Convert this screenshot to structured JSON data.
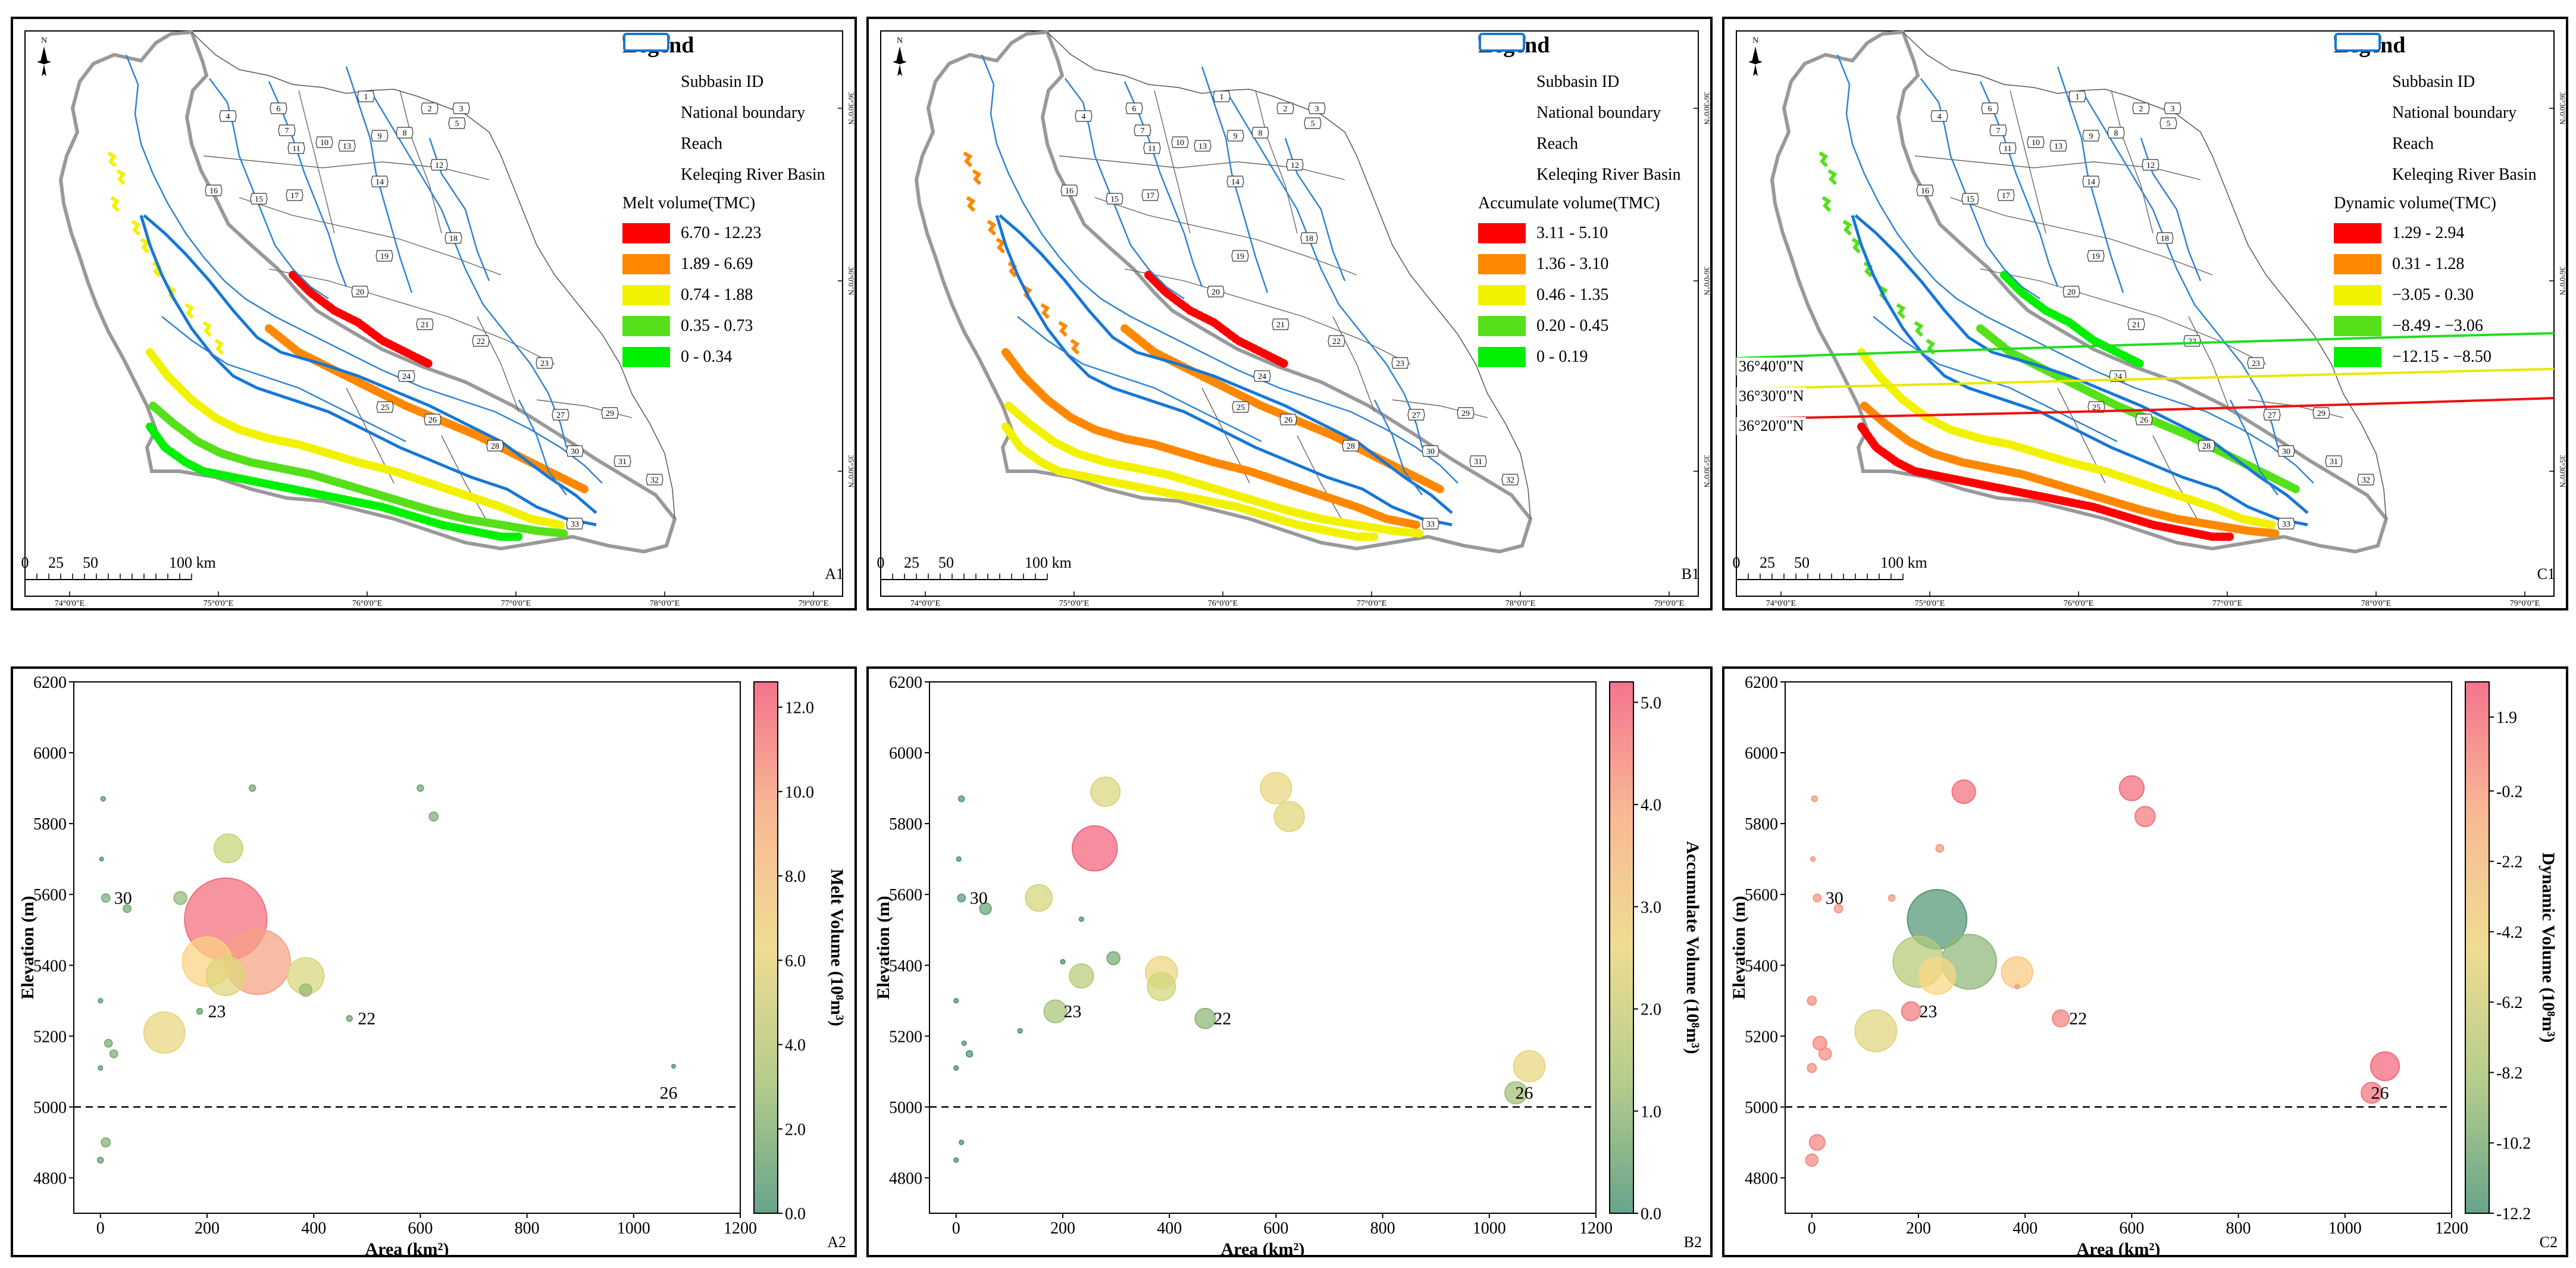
{
  "common": {
    "legend_title": "Legend",
    "items": {
      "subbasin": "Subbasin ID",
      "boundary": "National boundary",
      "reach": "Reach",
      "basin": "Keleqing River Basin"
    },
    "scale": [
      "0",
      "25",
      "50",
      "100 km"
    ],
    "lon_ticks": [
      "74°0'0\"E",
      "75°0'0\"E",
      "76°0'0\"E",
      "77°0'0\"E",
      "78°0'0\"E",
      "79°0'0\"E"
    ],
    "lat_ticks": [
      "36°30'0\"N",
      "36°0'0\"N",
      "35°30'0\"N"
    ],
    "north": "N",
    "subbasin_ids": [
      "1",
      "2",
      "3",
      "4",
      "5",
      "6",
      "7",
      "8",
      "9",
      "10",
      "11",
      "12",
      "13",
      "14",
      "15",
      "16",
      "17",
      "18",
      "19",
      "20",
      "21",
      "22",
      "23",
      "24",
      "25",
      "26",
      "27",
      "28",
      "29",
      "30",
      "31",
      "32",
      "33"
    ],
    "colors": {
      "c1": "#ff0000",
      "c2": "#ff8800",
      "c3": "#f2f200",
      "c4": "#55e01a",
      "c5": "#00f000"
    }
  },
  "maps": [
    {
      "id": "A1",
      "label": "A1",
      "legend_subtitle": "Melt volume(TMC)",
      "classes": [
        "6.70 - 12.23",
        "1.89 - 6.69",
        "0.74 - 1.88",
        "0.35 - 0.73",
        "0 - 0.34"
      ]
    },
    {
      "id": "B1",
      "label": "B1",
      "legend_subtitle": "Accumulate volume(TMC)",
      "classes": [
        "3.11 - 5.10",
        "1.36 - 3.10",
        "0.46 - 1.35",
        "0.20 - 0.45",
        "0 - 0.19"
      ]
    },
    {
      "id": "C1",
      "label": "C1",
      "legend_subtitle": "Dynamic volume(TMC)",
      "classes": [
        "1.29 - 2.94",
        "0.31 - 1.28",
        "−3.05 - 0.30",
        "−8.49 - −3.06",
        "−12.15 - −8.50"
      ],
      "lat_lines": [
        "36°40'0\"N",
        "36°30'0\"N",
        "36°20'0\"N"
      ]
    }
  ],
  "chart_data": [
    {
      "id": "A2",
      "label": "A2",
      "type": "scatter",
      "xlabel": "Area (km²)",
      "ylabel": "Elevation (m)",
      "colorbar_label": "Melt Volume (10⁸m³)",
      "xlim": [
        -50,
        1200
      ],
      "ylim": [
        4700,
        6200
      ],
      "xticks": [
        0,
        200,
        400,
        600,
        800,
        1000,
        1200
      ],
      "yticks": [
        4800,
        5000,
        5200,
        5400,
        5600,
        5800,
        6000,
        6200
      ],
      "cbar_range": [
        0,
        12.6
      ],
      "cbar_ticks": [
        "0.0",
        "2.0",
        "4.0",
        "6.0",
        "8.0",
        "10.0",
        "12.0"
      ],
      "cbar_tick_vals": [
        0,
        2,
        4,
        6,
        8,
        10,
        12
      ],
      "reference_line": 5000,
      "annotations": [
        {
          "text": "30",
          "x": 10,
          "y": 5590
        },
        {
          "text": "23",
          "x": 186,
          "y": 5270
        },
        {
          "text": "22",
          "x": 467,
          "y": 5250
        },
        {
          "text": "26",
          "x": 1060,
          "y": 5040
        }
      ],
      "points": [
        [
          5,
          5870,
          0.6,
          0.3
        ],
        [
          2,
          5700,
          0.4,
          0.2
        ],
        [
          10,
          5590,
          1.6,
          0.9
        ],
        [
          50,
          5560,
          1.4,
          0.8
        ],
        [
          150,
          5590,
          2.4,
          1.6
        ],
        [
          285,
          5900,
          1.3,
          0.6
        ],
        [
          600,
          5900,
          1.2,
          0.6
        ],
        [
          625,
          5820,
          1.8,
          1.0
        ],
        [
          240,
          5730,
          4.2,
          4.0
        ],
        [
          235,
          5530,
          12.0,
          12.2
        ],
        [
          200,
          5410,
          7.5,
          7.2
        ],
        [
          295,
          5410,
          10.0,
          9.6
        ],
        [
          235,
          5370,
          5.5,
          5.6
        ],
        [
          385,
          5370,
          5.2,
          5.2
        ],
        [
          385,
          5330,
          2.5,
          1.5
        ],
        [
          0,
          5300,
          0.6,
          0.3
        ],
        [
          186,
          5270,
          0.9,
          0.5
        ],
        [
          120,
          5210,
          6.0,
          5.9
        ],
        [
          467,
          5250,
          1.0,
          0.5
        ],
        [
          15,
          5180,
          1.5,
          0.8
        ],
        [
          25,
          5150,
          1.6,
          0.8
        ],
        [
          0,
          5110,
          0.8,
          0.3
        ],
        [
          1075,
          5115,
          0.3,
          0.2
        ],
        [
          10,
          4900,
          1.8,
          1.0
        ],
        [
          0,
          4850,
          1.0,
          0.5
        ]
      ]
    },
    {
      "id": "B2",
      "label": "B2",
      "type": "scatter",
      "xlabel": "Area (km²)",
      "ylabel": "Elevation (m)",
      "colorbar_label": "Accumulate Volume (10⁸m³)",
      "xlim": [
        -50,
        1200
      ],
      "ylim": [
        4700,
        6200
      ],
      "xticks": [
        0,
        200,
        400,
        600,
        800,
        1000,
        1200
      ],
      "yticks": [
        4800,
        5000,
        5200,
        5400,
        5600,
        5800,
        6000,
        6200
      ],
      "cbar_range": [
        0,
        5.2
      ],
      "cbar_ticks": [
        "0.0",
        "1.0",
        "2.0",
        "3.0",
        "4.0",
        "5.0"
      ],
      "cbar_tick_vals": [
        0,
        1,
        2,
        3,
        4,
        5
      ],
      "reference_line": 5000,
      "annotations": [
        {
          "text": "30",
          "x": 10,
          "y": 5590
        },
        {
          "text": "23",
          "x": 186,
          "y": 5270
        },
        {
          "text": "22",
          "x": 467,
          "y": 5250
        },
        {
          "text": "26",
          "x": 1060,
          "y": 5040
        }
      ],
      "points": [
        [
          10,
          5870,
          0.1,
          0.5
        ],
        [
          5,
          5700,
          0.05,
          0.3
        ],
        [
          10,
          5590,
          0.2,
          0.8
        ],
        [
          55,
          5560,
          0.4,
          1.4
        ],
        [
          280,
          5890,
          2.2,
          4.1
        ],
        [
          600,
          5900,
          2.5,
          4.4
        ],
        [
          625,
          5820,
          2.3,
          4.2
        ],
        [
          260,
          5730,
          5.1,
          6.5
        ],
        [
          155,
          5590,
          2.0,
          3.7
        ],
        [
          235,
          5530,
          0.05,
          0.3
        ],
        [
          200,
          5410,
          0.05,
          0.3
        ],
        [
          295,
          5420,
          0.6,
          1.6
        ],
        [
          385,
          5380,
          2.6,
          4.5
        ],
        [
          385,
          5340,
          2.0,
          3.9
        ],
        [
          235,
          5370,
          1.5,
          3.3
        ],
        [
          0,
          5300,
          0.05,
          0.3
        ],
        [
          186,
          5270,
          1.3,
          3.1
        ],
        [
          120,
          5215,
          0.05,
          0.3
        ],
        [
          467,
          5250,
          0.9,
          2.7
        ],
        [
          15,
          5180,
          0.05,
          0.3
        ],
        [
          25,
          5150,
          0.1,
          0.6
        ],
        [
          0,
          5110,
          0.05,
          0.3
        ],
        [
          1075,
          5115,
          2.5,
          4.4
        ],
        [
          1050,
          5040,
          1.2,
          3.0
        ],
        [
          10,
          4900,
          0.05,
          0.3
        ],
        [
          0,
          4850,
          0.05,
          0.3
        ]
      ]
    },
    {
      "id": "C2",
      "label": "C2",
      "type": "scatter",
      "xlabel": "Area (km²)",
      "ylabel": "Elevation (m)",
      "colorbar_label": "Dynamic Volume (10⁸m³)",
      "xlim": [
        -50,
        1200
      ],
      "ylim": [
        4700,
        6200
      ],
      "xticks": [
        0,
        200,
        400,
        600,
        800,
        1000,
        1200
      ],
      "yticks": [
        4800,
        5000,
        5200,
        5400,
        5600,
        5800,
        6000,
        6200
      ],
      "cbar_range": [
        -12.2,
        2.9
      ],
      "cbar_ticks": [
        "1.9",
        "-0.2",
        "-2.2",
        "-4.2",
        "-6.2",
        "-8.2",
        "-10.2",
        "-12.2"
      ],
      "cbar_tick_vals": [
        1.9,
        -0.2,
        -2.2,
        -4.2,
        -6.2,
        -8.2,
        -10.2,
        -12.2
      ],
      "reference_line": 5000,
      "annotations": [
        {
          "text": "30",
          "x": 10,
          "y": 5590
        },
        {
          "text": "23",
          "x": 186,
          "y": 5270
        },
        {
          "text": "22",
          "x": 467,
          "y": 5250
        },
        {
          "text": "26",
          "x": 1060,
          "y": 5040
        }
      ],
      "points": [
        [
          5,
          5870,
          0.1,
          0.5
        ],
        [
          2,
          5700,
          0.05,
          0.3
        ],
        [
          10,
          5590,
          0.3,
          0.8
        ],
        [
          50,
          5560,
          0.3,
          0.9
        ],
        [
          285,
          5890,
          2.0,
          3.2
        ],
        [
          600,
          5900,
          2.2,
          3.4
        ],
        [
          625,
          5820,
          1.6,
          2.7
        ],
        [
          240,
          5730,
          0.3,
          0.8
        ],
        [
          150,
          5590,
          0.3,
          0.6
        ],
        [
          235,
          5530,
          -12.0,
          8.7
        ],
        [
          200,
          5410,
          -8.0,
          7.4
        ],
        [
          295,
          5410,
          -9.5,
          8.0
        ],
        [
          235,
          5370,
          -3.5,
          5.2
        ],
        [
          385,
          5380,
          -2.6,
          4.4
        ],
        [
          385,
          5340,
          -0.1,
          0.3
        ],
        [
          0,
          5300,
          0.5,
          1.0
        ],
        [
          186,
          5270,
          1.5,
          2.5
        ],
        [
          120,
          5215,
          -5.5,
          6.0
        ],
        [
          467,
          5250,
          1.2,
          2.2
        ],
        [
          15,
          5180,
          0.9,
          1.7
        ],
        [
          25,
          5150,
          0.7,
          1.5
        ],
        [
          0,
          5110,
          0.5,
          1.0
        ],
        [
          1075,
          5115,
          2.4,
          4.0
        ],
        [
          1050,
          5040,
          1.8,
          2.8
        ],
        [
          10,
          4900,
          1.0,
          2.0
        ],
        [
          0,
          4850,
          0.8,
          1.5
        ]
      ]
    }
  ]
}
